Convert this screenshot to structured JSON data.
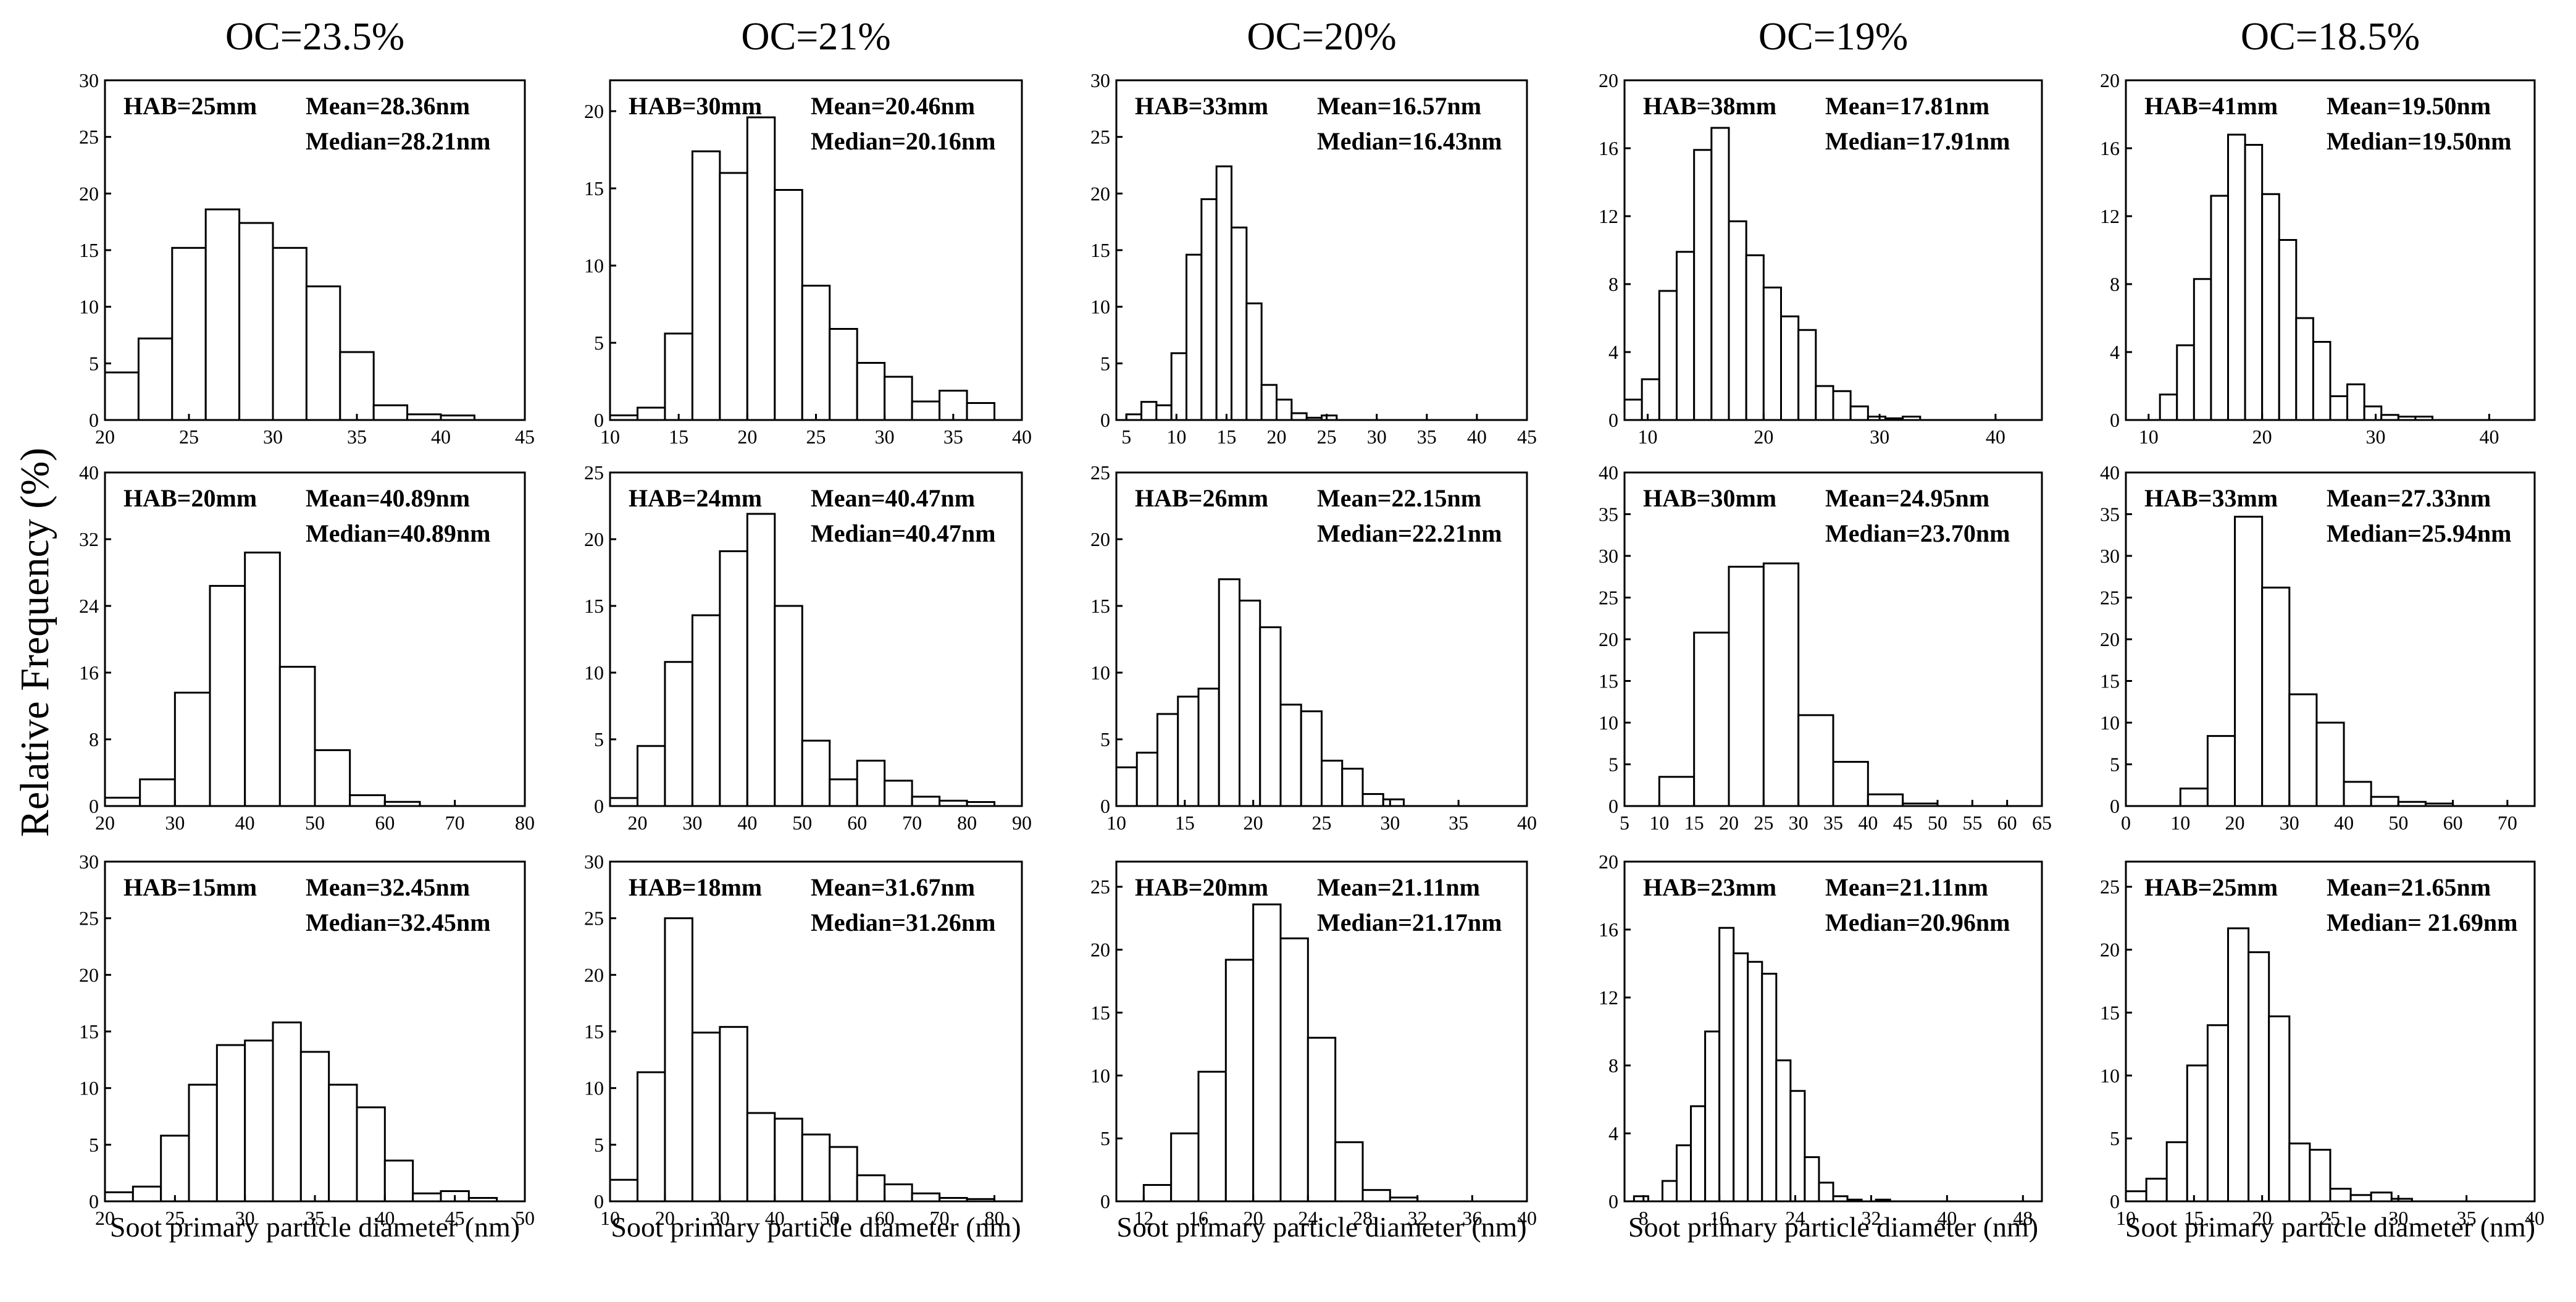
{
  "ylabel": "Relative Frequency (%)",
  "xlabel": "Soot primary particle diameter (nm)",
  "columns": [
    "OC=23.5%",
    "OC=21%",
    "OC=20%",
    "OC=19%",
    "OC=18.5%"
  ],
  "chart_data": [
    {
      "type": "bar",
      "oc": "OC=23.5%",
      "hab": "HAB=25mm",
      "mean": "Mean=28.36nm",
      "median": "Median=28.21nm",
      "bin_start": 20,
      "bin_width": 2,
      "values": [
        4.2,
        7.2,
        15.2,
        18.6,
        17.4,
        15.2,
        11.8,
        6.0,
        1.3,
        0.5,
        0.4
      ],
      "xlim": [
        20,
        45
      ],
      "xticks": [
        20,
        25,
        30,
        35,
        40,
        45
      ],
      "ylim": [
        0,
        30
      ],
      "yticks": [
        0,
        5,
        10,
        15,
        20,
        25,
        30
      ]
    },
    {
      "type": "bar",
      "oc": "OC=21%",
      "hab": "HAB=30mm",
      "mean": "Mean=20.46nm",
      "median": "Median=20.16nm",
      "bin_start": 10,
      "bin_width": 2,
      "values": [
        0.3,
        0.8,
        5.6,
        17.4,
        16.0,
        19.6,
        14.9,
        8.7,
        5.9,
        3.7,
        2.8,
        1.2,
        1.9,
        1.1
      ],
      "xlim": [
        10,
        40
      ],
      "xticks": [
        10,
        15,
        20,
        25,
        30,
        35,
        40
      ],
      "ylim": [
        0,
        22
      ],
      "yticks": [
        0,
        5,
        10,
        15,
        20
      ]
    },
    {
      "type": "bar",
      "oc": "OC=20%",
      "hab": "HAB=33mm",
      "mean": "Mean=16.57nm",
      "median": "Median=16.43nm",
      "bin_start": 5,
      "bin_width": 1.5,
      "values": [
        0.5,
        1.6,
        1.3,
        5.9,
        14.6,
        19.5,
        22.4,
        17.0,
        10.3,
        3.1,
        1.8,
        0.6,
        0.2,
        0.4
      ],
      "xlim": [
        4,
        45
      ],
      "xticks": [
        5,
        10,
        15,
        20,
        25,
        30,
        35,
        40,
        45
      ],
      "ylim": [
        0,
        30
      ],
      "yticks": [
        0,
        5,
        10,
        15,
        20,
        25,
        30
      ]
    },
    {
      "type": "bar",
      "oc": "OC=19%",
      "hab": "HAB=38mm",
      "mean": "Mean=17.81nm",
      "median": "Median=17.91nm",
      "bin_start": 8,
      "bin_width": 1.5,
      "values": [
        1.2,
        2.4,
        7.6,
        9.9,
        15.9,
        17.2,
        11.7,
        9.7,
        7.8,
        6.1,
        5.3,
        2.0,
        1.7,
        0.8,
        0.2,
        0.1,
        0.2
      ],
      "xlim": [
        8,
        44
      ],
      "xticks": [
        10,
        20,
        30,
        40
      ],
      "ylim": [
        0,
        20
      ],
      "yticks": [
        0,
        4,
        8,
        12,
        16,
        20
      ]
    },
    {
      "type": "bar",
      "oc": "OC=18.5%",
      "hab": "HAB=41mm",
      "mean": "Mean=19.50nm",
      "median": "Median=19.50nm",
      "bin_start": 11,
      "bin_width": 1.5,
      "values": [
        1.5,
        4.4,
        8.3,
        13.2,
        16.8,
        16.2,
        13.3,
        10.6,
        6.0,
        4.6,
        1.4,
        2.1,
        0.8,
        0.3,
        0.2,
        0.2
      ],
      "xlim": [
        8,
        44
      ],
      "xticks": [
        10,
        20,
        30,
        40
      ],
      "ylim": [
        0,
        20
      ],
      "yticks": [
        0,
        4,
        8,
        12,
        16,
        20
      ]
    },
    {
      "type": "bar",
      "oc": "OC=23.5%",
      "hab": "HAB=20mm",
      "mean": "Mean=40.89nm",
      "median": "Median=40.89nm",
      "bin_start": 20,
      "bin_width": 5,
      "values": [
        1.0,
        3.2,
        13.6,
        26.4,
        30.4,
        16.7,
        6.7,
        1.3,
        0.5
      ],
      "xlim": [
        20,
        80
      ],
      "xticks": [
        20,
        30,
        40,
        50,
        60,
        70,
        80
      ],
      "ylim": [
        0,
        40
      ],
      "yticks": [
        0,
        8,
        16,
        24,
        32,
        40
      ]
    },
    {
      "type": "bar",
      "oc": "OC=21%",
      "hab": "HAB=24mm",
      "mean": "Mean=40.47nm",
      "median": "Median=40.47nm",
      "bin_start": 15,
      "bin_width": 5,
      "values": [
        0.6,
        4.5,
        10.8,
        14.3,
        19.1,
        21.9,
        15.0,
        4.9,
        2.0,
        3.4,
        1.9,
        0.7,
        0.4,
        0.3
      ],
      "xlim": [
        15,
        90
      ],
      "xticks": [
        20,
        30,
        40,
        50,
        60,
        70,
        80,
        90
      ],
      "ylim": [
        0,
        25
      ],
      "yticks": [
        0,
        5,
        10,
        15,
        20,
        25
      ]
    },
    {
      "type": "bar",
      "oc": "OC=20%",
      "hab": "HAB=26mm",
      "mean": "Mean=22.15nm",
      "median": "Median=22.21nm",
      "bin_start": 10,
      "bin_width": 1.5,
      "values": [
        2.9,
        4.0,
        6.9,
        8.2,
        8.8,
        17.0,
        15.4,
        13.4,
        7.6,
        7.1,
        3.4,
        2.8,
        0.9,
        0.5
      ],
      "xlim": [
        10,
        40
      ],
      "xticks": [
        10,
        15,
        20,
        25,
        30,
        35,
        40
      ],
      "ylim": [
        0,
        25
      ],
      "yticks": [
        0,
        5,
        10,
        15,
        20,
        25
      ]
    },
    {
      "type": "bar",
      "oc": "OC=19%",
      "hab": "HAB=30mm",
      "mean": "Mean=24.95nm",
      "median": "Median=23.70nm",
      "bin_start": 10,
      "bin_width": 5,
      "values": [
        3.5,
        20.8,
        28.7,
        29.1,
        10.9,
        5.3,
        1.4,
        0.3
      ],
      "xlim": [
        5,
        65
      ],
      "xticks": [
        5,
        10,
        15,
        20,
        25,
        30,
        35,
        40,
        45,
        50,
        55,
        60,
        65
      ],
      "ylim": [
        0,
        40
      ],
      "yticks": [
        0,
        5,
        10,
        15,
        20,
        25,
        30,
        35,
        40
      ]
    },
    {
      "type": "bar",
      "oc": "OC=18.5%",
      "hab": "HAB=33mm",
      "mean": "Mean=27.33nm",
      "median": "Median=25.94nm",
      "bin_start": 10,
      "bin_width": 5,
      "values": [
        2.1,
        8.4,
        34.7,
        26.2,
        13.4,
        10.0,
        2.9,
        1.1,
        0.5,
        0.3
      ],
      "xlim": [
        0,
        75
      ],
      "xticks": [
        0,
        10,
        20,
        30,
        40,
        50,
        60,
        70
      ],
      "ylim": [
        0,
        40
      ],
      "yticks": [
        0,
        5,
        10,
        15,
        20,
        25,
        30,
        35,
        40
      ]
    },
    {
      "type": "bar",
      "oc": "OC=23.5%",
      "hab": "HAB=15mm",
      "mean": "Mean=32.45nm",
      "median": "Median=32.45nm",
      "bin_start": 20,
      "bin_width": 2,
      "values": [
        0.8,
        1.3,
        5.8,
        10.3,
        13.8,
        14.2,
        15.8,
        13.2,
        10.3,
        8.3,
        3.6,
        0.7,
        0.9,
        0.3
      ],
      "xlim": [
        20,
        50
      ],
      "xticks": [
        20,
        25,
        30,
        35,
        40,
        45,
        50
      ],
      "ylim": [
        0,
        30
      ],
      "yticks": [
        0,
        5,
        10,
        15,
        20,
        25,
        30
      ]
    },
    {
      "type": "bar",
      "oc": "OC=21%",
      "hab": "HAB=18mm",
      "mean": "Mean=31.67nm",
      "median": "Median=31.26nm",
      "bin_start": 10,
      "bin_width": 5,
      "values": [
        1.9,
        11.4,
        25.0,
        14.9,
        15.4,
        7.8,
        7.3,
        5.9,
        4.8,
        2.3,
        1.5,
        0.7,
        0.3,
        0.2
      ],
      "xlim": [
        10,
        85
      ],
      "xticks": [
        10,
        20,
        30,
        40,
        50,
        60,
        70,
        80
      ],
      "ylim": [
        0,
        30
      ],
      "yticks": [
        0,
        5,
        10,
        15,
        20,
        25,
        30
      ]
    },
    {
      "type": "bar",
      "oc": "OC=20%",
      "hab": "HAB=20mm",
      "mean": "Mean=21.11nm",
      "median": "Median=21.17nm",
      "bin_start": 12,
      "bin_width": 2,
      "values": [
        1.3,
        5.4,
        10.3,
        19.2,
        23.6,
        20.9,
        13.0,
        4.7,
        0.9,
        0.3
      ],
      "xlim": [
        10,
        40
      ],
      "xticks": [
        12,
        16,
        20,
        24,
        28,
        32,
        36,
        40
      ],
      "ylim": [
        0,
        27
      ],
      "yticks": [
        0,
        5,
        10,
        15,
        20,
        25
      ]
    },
    {
      "type": "bar",
      "oc": "OC=19%",
      "hab": "HAB=23mm",
      "mean": "Mean=21.11nm",
      "median": "Median=20.96nm",
      "bin_start": 7,
      "bin_width": 1.5,
      "values": [
        0.3,
        0.0,
        1.2,
        3.3,
        5.6,
        10.0,
        16.1,
        14.6,
        14.1,
        13.4,
        8.3,
        6.5,
        2.6,
        1.1,
        0.3,
        0.1,
        0.0,
        0.1
      ],
      "xlim": [
        6,
        50
      ],
      "xticks": [
        8,
        16,
        24,
        32,
        40,
        48
      ],
      "ylim": [
        0,
        20
      ],
      "yticks": [
        0,
        4,
        8,
        12,
        16,
        20
      ]
    },
    {
      "type": "bar",
      "oc": "OC=18.5%",
      "hab": "HAB=25mm",
      "mean": "Mean=21.65nm",
      "median": "Median= 21.69nm",
      "bin_start": 10,
      "bin_width": 1.5,
      "values": [
        0.8,
        1.8,
        4.7,
        10.8,
        14.0,
        21.7,
        19.8,
        14.7,
        4.6,
        4.1,
        1.0,
        0.5,
        0.7,
        0.2
      ],
      "xlim": [
        10,
        40
      ],
      "xticks": [
        10,
        15,
        20,
        25,
        30,
        35,
        40
      ],
      "ylim": [
        0,
        27
      ],
      "yticks": [
        0,
        5,
        10,
        15,
        20,
        25
      ]
    }
  ]
}
